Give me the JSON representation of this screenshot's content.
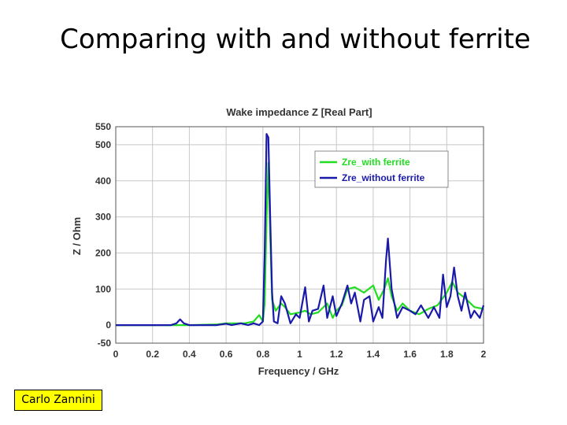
{
  "slide": {
    "title": "Comparing with and without ferrite",
    "author": "Carlo Zannini"
  },
  "chart_data": {
    "type": "line",
    "title": "Wake impedance Z [Real Part]",
    "xlabel": "Frequency / GHz",
    "ylabel": "Z / Ohm",
    "xlim": [
      0,
      2
    ],
    "ylim": [
      -50,
      550
    ],
    "xticks": [
      "0",
      "0.2",
      "0.4",
      "0.6",
      "0.8",
      "1",
      "1.2",
      "1.4",
      "1.6",
      "1.8",
      "2"
    ],
    "yticks": [
      "-50",
      "0",
      "100",
      "200",
      "300",
      "400",
      "500",
      "550"
    ],
    "grid": true,
    "legend_position": "top-right",
    "series": [
      {
        "name": "Zre_with ferrite",
        "color": "#22dd22",
        "x": [
          0,
          0.3,
          0.34,
          0.36,
          0.4,
          0.55,
          0.6,
          0.65,
          0.7,
          0.75,
          0.78,
          0.8,
          0.81,
          0.82,
          0.83,
          0.84,
          0.85,
          0.87,
          0.9,
          0.92,
          0.95,
          1.0,
          1.03,
          1.06,
          1.1,
          1.15,
          1.18,
          1.2,
          1.23,
          1.26,
          1.3,
          1.35,
          1.4,
          1.43,
          1.46,
          1.48,
          1.5,
          1.53,
          1.56,
          1.6,
          1.65,
          1.7,
          1.75,
          1.8,
          1.83,
          1.86,
          1.9,
          1.95,
          2.0
        ],
        "y": [
          0,
          0,
          0,
          0,
          0,
          2,
          5,
          5,
          5,
          10,
          28,
          10,
          60,
          300,
          450,
          250,
          70,
          40,
          60,
          50,
          30,
          35,
          40,
          30,
          35,
          60,
          20,
          40,
          55,
          100,
          105,
          90,
          110,
          70,
          100,
          130,
          80,
          40,
          60,
          40,
          30,
          45,
          55,
          90,
          120,
          90,
          75,
          50,
          45
        ]
      },
      {
        "name": "Zre_without ferrite",
        "color": "#1a1aaa",
        "x": [
          0,
          0.3,
          0.33,
          0.35,
          0.37,
          0.4,
          0.55,
          0.6,
          0.63,
          0.68,
          0.72,
          0.75,
          0.78,
          0.8,
          0.81,
          0.82,
          0.83,
          0.84,
          0.85,
          0.86,
          0.88,
          0.9,
          0.92,
          0.95,
          0.98,
          1.0,
          1.03,
          1.05,
          1.07,
          1.1,
          1.13,
          1.15,
          1.18,
          1.2,
          1.23,
          1.26,
          1.28,
          1.3,
          1.33,
          1.35,
          1.38,
          1.4,
          1.43,
          1.45,
          1.47,
          1.48,
          1.5,
          1.53,
          1.56,
          1.6,
          1.63,
          1.66,
          1.7,
          1.73,
          1.76,
          1.78,
          1.8,
          1.82,
          1.84,
          1.86,
          1.88,
          1.9,
          1.93,
          1.95,
          1.98,
          2.0
        ],
        "y": [
          0,
          0,
          5,
          16,
          5,
          0,
          0,
          4,
          0,
          5,
          0,
          5,
          0,
          10,
          200,
          530,
          520,
          300,
          90,
          10,
          5,
          80,
          60,
          5,
          30,
          20,
          105,
          10,
          40,
          45,
          110,
          20,
          80,
          25,
          60,
          110,
          60,
          90,
          10,
          70,
          80,
          10,
          50,
          20,
          180,
          240,
          100,
          20,
          50,
          40,
          30,
          55,
          20,
          50,
          20,
          140,
          50,
          80,
          160,
          80,
          40,
          90,
          20,
          40,
          20,
          55
        ]
      }
    ]
  }
}
